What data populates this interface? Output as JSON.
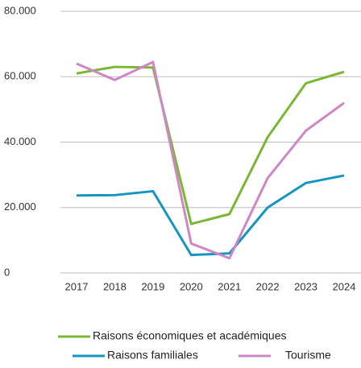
{
  "chart_data": {
    "type": "line",
    "categories": [
      "2017",
      "2018",
      "2019",
      "2020",
      "2021",
      "2022",
      "2023",
      "2024"
    ],
    "series": [
      {
        "name": "Raisons économiques et académiques",
        "color": "#7ab733",
        "values": [
          61000,
          63000,
          62800,
          15000,
          18000,
          41500,
          58000,
          61500
        ]
      },
      {
        "name": "Raisons familiales",
        "color": "#1596c0",
        "values": [
          23700,
          23800,
          25000,
          5500,
          6000,
          20000,
          27500,
          29800
        ]
      },
      {
        "name": "Tourisme",
        "color": "#cf86c4",
        "values": [
          64000,
          59000,
          64500,
          9000,
          4500,
          29000,
          43500,
          52000
        ]
      }
    ],
    "ylim": [
      0,
      80000
    ],
    "yticks": [
      0,
      {
        "value": 20000,
        "label": "20.000"
      },
      {
        "value": 40000,
        "label": "40.000"
      },
      {
        "value": 60000,
        "label": "60.000"
      },
      {
        "value": 80000,
        "label": "80.000"
      }
    ],
    "grid": true,
    "legend": "bottom"
  }
}
